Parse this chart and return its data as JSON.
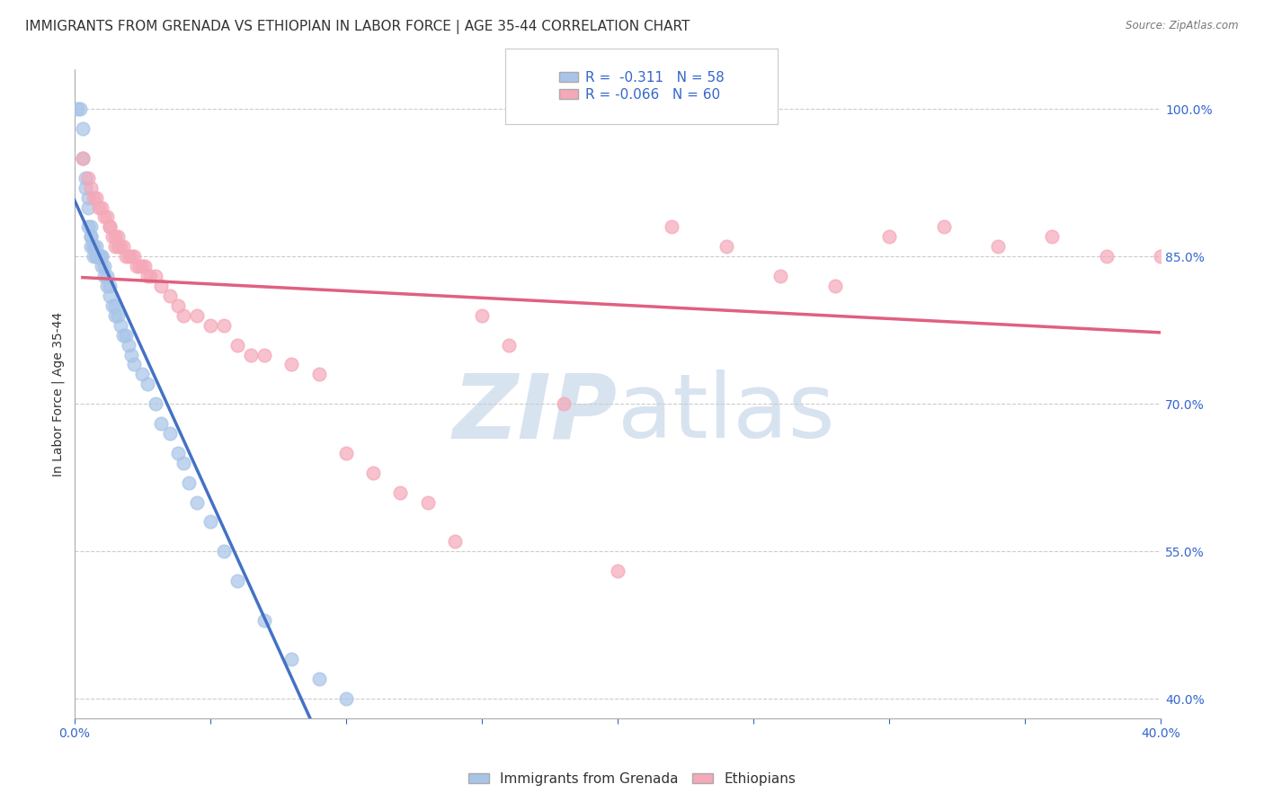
{
  "title": "IMMIGRANTS FROM GRENADA VS ETHIOPIAN IN LABOR FORCE | AGE 35-44 CORRELATION CHART",
  "source": "Source: ZipAtlas.com",
  "ylabel": "In Labor Force | Age 35-44",
  "xlim": [
    0.0,
    0.4
  ],
  "ylim": [
    0.38,
    1.04
  ],
  "xticks": [
    0.0,
    0.05,
    0.1,
    0.15,
    0.2,
    0.25,
    0.3,
    0.35,
    0.4
  ],
  "xticklabels": [
    "0.0%",
    "",
    "",
    "",
    "",
    "",
    "",
    "",
    "40.0%"
  ],
  "yticks_right": [
    0.4,
    0.55,
    0.7,
    0.85,
    1.0
  ],
  "ytick_right_labels": [
    "40.0%",
    "55.0%",
    "70.0%",
    "85.0%",
    "100.0%"
  ],
  "grenada_R": -0.311,
  "grenada_N": 58,
  "ethiopian_R": -0.066,
  "ethiopian_N": 60,
  "grenada_color": "#a8c4e8",
  "ethiopian_color": "#f4a8b8",
  "grenada_line_color": "#4472c4",
  "ethiopian_line_color": "#e06080",
  "dashed_line_color": "#aabbd0",
  "watermark_zip": "ZIP",
  "watermark_atlas": "atlas",
  "watermark_color_zip": "#b8cce4",
  "watermark_color_atlas": "#b8cce4",
  "background_color": "#ffffff",
  "grid_color": "#cccccc",
  "title_fontsize": 11,
  "axis_label_fontsize": 10,
  "tick_fontsize": 10,
  "grenada_scatter_x": [
    0.001,
    0.002,
    0.003,
    0.003,
    0.004,
    0.004,
    0.005,
    0.005,
    0.005,
    0.006,
    0.006,
    0.006,
    0.006,
    0.007,
    0.007,
    0.007,
    0.008,
    0.008,
    0.008,
    0.008,
    0.009,
    0.009,
    0.009,
    0.01,
    0.01,
    0.01,
    0.011,
    0.011,
    0.012,
    0.012,
    0.013,
    0.013,
    0.014,
    0.015,
    0.015,
    0.016,
    0.017,
    0.018,
    0.019,
    0.02,
    0.021,
    0.022,
    0.025,
    0.027,
    0.03,
    0.032,
    0.035,
    0.038,
    0.04,
    0.042,
    0.045,
    0.05,
    0.055,
    0.06,
    0.07,
    0.08,
    0.09,
    0.1
  ],
  "grenada_scatter_y": [
    1.0,
    1.0,
    0.98,
    0.95,
    0.93,
    0.92,
    0.91,
    0.9,
    0.88,
    0.88,
    0.87,
    0.87,
    0.86,
    0.86,
    0.86,
    0.85,
    0.86,
    0.85,
    0.85,
    0.85,
    0.85,
    0.85,
    0.85,
    0.85,
    0.85,
    0.84,
    0.84,
    0.83,
    0.83,
    0.82,
    0.82,
    0.81,
    0.8,
    0.8,
    0.79,
    0.79,
    0.78,
    0.77,
    0.77,
    0.76,
    0.75,
    0.74,
    0.73,
    0.72,
    0.7,
    0.68,
    0.67,
    0.65,
    0.64,
    0.62,
    0.6,
    0.58,
    0.55,
    0.52,
    0.48,
    0.44,
    0.42,
    0.4
  ],
  "ethiopian_scatter_x": [
    0.003,
    0.005,
    0.006,
    0.007,
    0.008,
    0.009,
    0.01,
    0.011,
    0.012,
    0.013,
    0.013,
    0.014,
    0.015,
    0.015,
    0.016,
    0.016,
    0.017,
    0.018,
    0.019,
    0.02,
    0.021,
    0.022,
    0.023,
    0.024,
    0.025,
    0.026,
    0.027,
    0.028,
    0.03,
    0.032,
    0.035,
    0.038,
    0.04,
    0.045,
    0.05,
    0.055,
    0.06,
    0.065,
    0.07,
    0.08,
    0.09,
    0.1,
    0.11,
    0.12,
    0.13,
    0.14,
    0.15,
    0.16,
    0.18,
    0.2,
    0.22,
    0.24,
    0.26,
    0.28,
    0.3,
    0.32,
    0.34,
    0.36,
    0.38,
    0.4
  ],
  "ethiopian_scatter_y": [
    0.95,
    0.93,
    0.92,
    0.91,
    0.91,
    0.9,
    0.9,
    0.89,
    0.89,
    0.88,
    0.88,
    0.87,
    0.87,
    0.86,
    0.87,
    0.86,
    0.86,
    0.86,
    0.85,
    0.85,
    0.85,
    0.85,
    0.84,
    0.84,
    0.84,
    0.84,
    0.83,
    0.83,
    0.83,
    0.82,
    0.81,
    0.8,
    0.79,
    0.79,
    0.78,
    0.78,
    0.76,
    0.75,
    0.75,
    0.74,
    0.73,
    0.65,
    0.63,
    0.61,
    0.6,
    0.56,
    0.79,
    0.76,
    0.7,
    0.53,
    0.88,
    0.86,
    0.83,
    0.82,
    0.87,
    0.88,
    0.86,
    0.87,
    0.85,
    0.85
  ]
}
